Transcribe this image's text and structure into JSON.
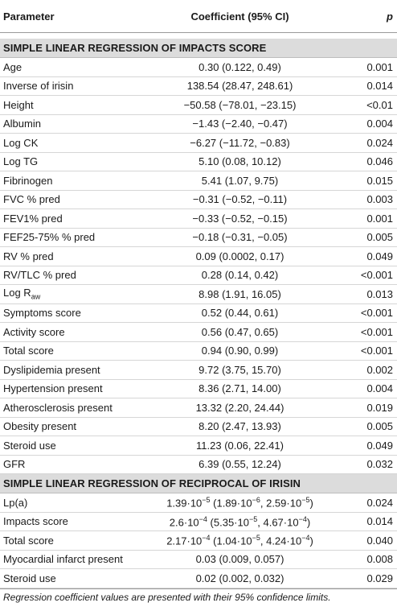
{
  "header": {
    "parameter": "Parameter",
    "coefficient": "Coefficient (95% CI)",
    "p": "p"
  },
  "section1": {
    "title": "SIMPLE LINEAR REGRESSION OF IMPACTS SCORE",
    "rows": [
      {
        "param": "Age",
        "coef": "0.30 (0.122, 0.49)",
        "p": "0.001"
      },
      {
        "param": "Inverse of irisin",
        "coef": "138.54 (28.47, 248.61)",
        "p": "0.014"
      },
      {
        "param": "Height",
        "coef": "−50.58 (−78.01, −23.15)",
        "p": "<0.01"
      },
      {
        "param": "Albumin",
        "coef": "−1.43 (−2.40, −0.47)",
        "p": "0.004"
      },
      {
        "param": "Log CK",
        "coef": "−6.27 (−11.72, −0.83)",
        "p": "0.024"
      },
      {
        "param": "Log TG",
        "coef": "5.10 (0.08, 10.12)",
        "p": "0.046"
      },
      {
        "param": "Fibrinogen",
        "coef": "5.41 (1.07, 9.75)",
        "p": "0.015"
      },
      {
        "param": "FVC % pred",
        "coef": "−0.31 (−0.52, −0.11)",
        "p": "0.003"
      },
      {
        "param": "FEV1% pred",
        "coef": "−0.33 (−0.52, −0.15)",
        "p": "0.001"
      },
      {
        "param": "FEF25-75% % pred",
        "coef": "−0.18 (−0.31, −0.05)",
        "p": "0.005"
      },
      {
        "param": "RV % pred",
        "coef": "0.09 (0.0002, 0.17)",
        "p": "0.049"
      },
      {
        "param": "RV/TLC % pred",
        "coef": "0.28 (0.14, 0.42)",
        "p": "<0.001"
      },
      {
        "param": "Log R",
        "param_sub": "aw",
        "coef": "8.98 (1.91, 16.05)",
        "p": "0.013"
      },
      {
        "param": "Symptoms score",
        "coef": "0.52 (0.44, 0.61)",
        "p": "<0.001"
      },
      {
        "param": "Activity score",
        "coef": "0.56 (0.47, 0.65)",
        "p": "<0.001"
      },
      {
        "param": "Total score",
        "coef": "0.94 (0.90, 0.99)",
        "p": "<0.001"
      },
      {
        "param": "Dyslipidemia present",
        "coef": "9.72 (3.75, 15.70)",
        "p": "0.002"
      },
      {
        "param": "Hypertension present",
        "coef": "8.36 (2.71, 14.00)",
        "p": "0.004"
      },
      {
        "param": "Atherosclerosis present",
        "coef": "13.32 (2.20, 24.44)",
        "p": "0.019"
      },
      {
        "param": "Obesity present",
        "coef": "8.20 (2.47, 13.93)",
        "p": "0.005"
      },
      {
        "param": "Steroid use",
        "coef": "11.23 (0.06, 22.41)",
        "p": "0.049"
      },
      {
        "param": "GFR",
        "coef": "6.39 (0.55, 12.24)",
        "p": "0.032"
      }
    ]
  },
  "section2": {
    "title": "SIMPLE LINEAR REGRESSION OF RECIPROCAL OF IRISIN",
    "rows": [
      {
        "param": "Lp(a)",
        "p": "0.024"
      },
      {
        "param": "Impacts score",
        "p": "0.014"
      },
      {
        "param": "Total score",
        "p": "0.040"
      },
      {
        "param": "Myocardial infarct present",
        "coef": "0.03 (0.009, 0.057)",
        "p": "0.008"
      },
      {
        "param": "Steroid use",
        "coef": "0.02 (0.002, 0.032)",
        "p": "0.029"
      }
    ],
    "sci": {
      "lpa": {
        "m1": "1.39·10",
        "e1": "−5",
        "m2": " (1.89·10",
        "e2": "−6",
        "m3": ", 2.59·10",
        "e3": "−5",
        "m4": ")"
      },
      "impacts": {
        "m1": "2.6·10",
        "e1": "−4",
        "m2": " (5.35·10",
        "e2": "−5",
        "m3": ", 4.67·10",
        "e3": "−4",
        "m4": ")"
      },
      "total": {
        "m1": "2.17·10",
        "e1": "−4",
        "m2": " (1.04·10",
        "e2": "−5",
        "m3": ", 4.24·10",
        "e3": "−4",
        "m4": ")"
      }
    }
  },
  "footnote": "Regression coefficient values are presented with their 95% confidence limits."
}
